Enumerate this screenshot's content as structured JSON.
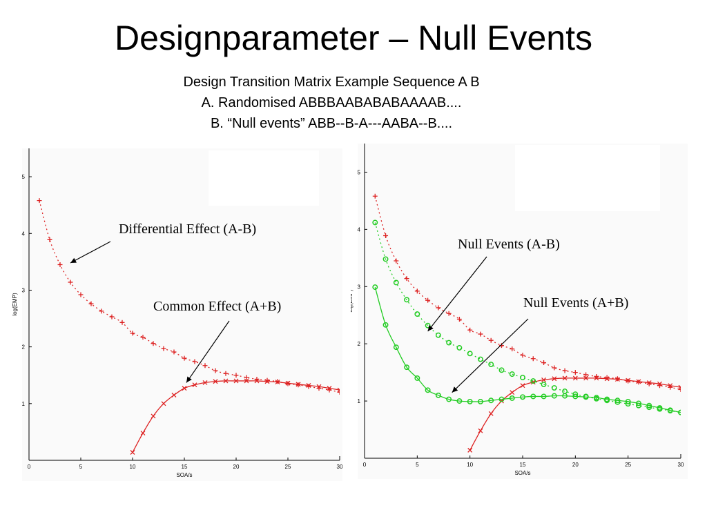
{
  "slide": {
    "title": "Designparameter – Null Events",
    "subtitle_lines": [
      "Design Transition Matrix Example Sequence A B",
      "A. Randomised ABBBAABABABAAAAB....",
      "B. “Null events” ABB--B-A---AABA--B...."
    ]
  },
  "chart_data": [
    {
      "type": "line",
      "xlabel": "SOA/s",
      "ylabel": "log(EMP)",
      "xlim": [
        0,
        30
      ],
      "ylim": [
        0,
        5.5
      ],
      "xticks": [
        0,
        5,
        10,
        15,
        20,
        25,
        30
      ],
      "yticks": [
        1,
        2,
        3,
        4,
        5
      ],
      "series": [
        {
          "color": "#dd2222",
          "marker": "+",
          "line": "dotted",
          "x": [
            1,
            2,
            3,
            4,
            5,
            6,
            7,
            8,
            9,
            10,
            11,
            12,
            13,
            14,
            15,
            16,
            17,
            18,
            19,
            20,
            21,
            22,
            23,
            24,
            25,
            26,
            27,
            28,
            29,
            30
          ],
          "y": [
            4.58,
            3.89,
            3.45,
            3.14,
            2.92,
            2.76,
            2.63,
            2.53,
            2.43,
            2.24,
            2.17,
            2.06,
            1.97,
            1.91,
            1.8,
            1.74,
            1.67,
            1.58,
            1.53,
            1.5,
            1.46,
            1.43,
            1.41,
            1.39,
            1.35,
            1.33,
            1.3,
            1.27,
            1.24,
            1.2
          ]
        },
        {
          "color": "#dd2222",
          "marker": "x",
          "line": "solid",
          "x": [
            10,
            11,
            12,
            13,
            14,
            15,
            16,
            17,
            18,
            19,
            20,
            21,
            22,
            23,
            24,
            25,
            26,
            27,
            28,
            29,
            30
          ],
          "y": [
            0.14,
            0.48,
            0.78,
            1.0,
            1.15,
            1.27,
            1.33,
            1.37,
            1.39,
            1.4,
            1.4,
            1.4,
            1.4,
            1.39,
            1.38,
            1.36,
            1.34,
            1.32,
            1.3,
            1.27,
            1.24
          ]
        }
      ],
      "annotations": [
        {
          "text": "Differential Effect (A-B)",
          "x": 4,
          "y": 3.48
        },
        {
          "text": "Common Effect (A+B)",
          "x": 15.2,
          "y": 1.37
        }
      ]
    },
    {
      "type": "line",
      "xlabel": "SOA/s",
      "ylabel": "log(EMP)",
      "xlim": [
        0,
        30
      ],
      "ylim": [
        0,
        5.5
      ],
      "xticks": [
        0,
        5,
        10,
        15,
        20,
        25,
        30
      ],
      "yticks": [
        1,
        2,
        3,
        4,
        5
      ],
      "series": [
        {
          "color": "#dd2222",
          "marker": "+",
          "line": "dotted",
          "x": [
            1,
            2,
            3,
            4,
            5,
            6,
            7,
            8,
            9,
            10,
            11,
            12,
            13,
            14,
            15,
            16,
            17,
            18,
            19,
            20,
            21,
            22,
            23,
            24,
            25,
            26,
            27,
            28,
            29,
            30
          ],
          "y": [
            4.58,
            3.89,
            3.45,
            3.14,
            2.92,
            2.76,
            2.63,
            2.53,
            2.43,
            2.24,
            2.17,
            2.06,
            1.97,
            1.91,
            1.8,
            1.74,
            1.67,
            1.58,
            1.53,
            1.5,
            1.46,
            1.43,
            1.41,
            1.39,
            1.35,
            1.33,
            1.3,
            1.27,
            1.24,
            1.2
          ]
        },
        {
          "color": "#dd2222",
          "marker": "x",
          "line": "solid",
          "x": [
            10,
            11,
            12,
            13,
            14,
            15,
            16,
            17,
            18,
            19,
            20,
            21,
            22,
            23,
            24,
            25,
            26,
            27,
            28,
            29,
            30
          ],
          "y": [
            0.14,
            0.48,
            0.78,
            1.0,
            1.15,
            1.27,
            1.33,
            1.37,
            1.39,
            1.4,
            1.4,
            1.4,
            1.4,
            1.39,
            1.38,
            1.36,
            1.34,
            1.32,
            1.3,
            1.27,
            1.24
          ]
        },
        {
          "color": "#22cc22",
          "marker": "o",
          "line": "dotted",
          "x": [
            1,
            2,
            3,
            4,
            5,
            6,
            7,
            8,
            9,
            10,
            11,
            12,
            13,
            14,
            15,
            16,
            17,
            18,
            19,
            20,
            21,
            22,
            23,
            24,
            25,
            26,
            27,
            28,
            29,
            30
          ],
          "y": [
            4.12,
            3.48,
            3.07,
            2.77,
            2.52,
            2.32,
            2.15,
            2.02,
            1.93,
            1.83,
            1.73,
            1.64,
            1.54,
            1.47,
            1.41,
            1.35,
            1.29,
            1.23,
            1.17,
            1.12,
            1.08,
            1.04,
            1.01,
            0.98,
            0.95,
            0.92,
            0.89,
            0.86,
            0.83,
            0.8
          ]
        },
        {
          "color": "#22cc22",
          "marker": "o",
          "line": "solid",
          "x": [
            1,
            2,
            3,
            4,
            5,
            6,
            7,
            8,
            9,
            10,
            11,
            12,
            13,
            14,
            15,
            16,
            17,
            18,
            19,
            20,
            21,
            22,
            23,
            24,
            25,
            26,
            27,
            28,
            29,
            30
          ],
          "y": [
            2.99,
            2.33,
            1.94,
            1.59,
            1.4,
            1.19,
            1.1,
            1.03,
            1.0,
            0.99,
            0.99,
            1.01,
            1.03,
            1.05,
            1.07,
            1.08,
            1.08,
            1.09,
            1.09,
            1.08,
            1.07,
            1.06,
            1.03,
            1.01,
            0.99,
            0.96,
            0.92,
            0.88,
            0.84,
            0.8
          ]
        }
      ],
      "annotations": [
        {
          "text": "Null Events (A-B)",
          "x": 6,
          "y": 2.22
        },
        {
          "text": "Null Events (A+B)",
          "x": 8.3,
          "y": 1.15
        }
      ]
    }
  ]
}
